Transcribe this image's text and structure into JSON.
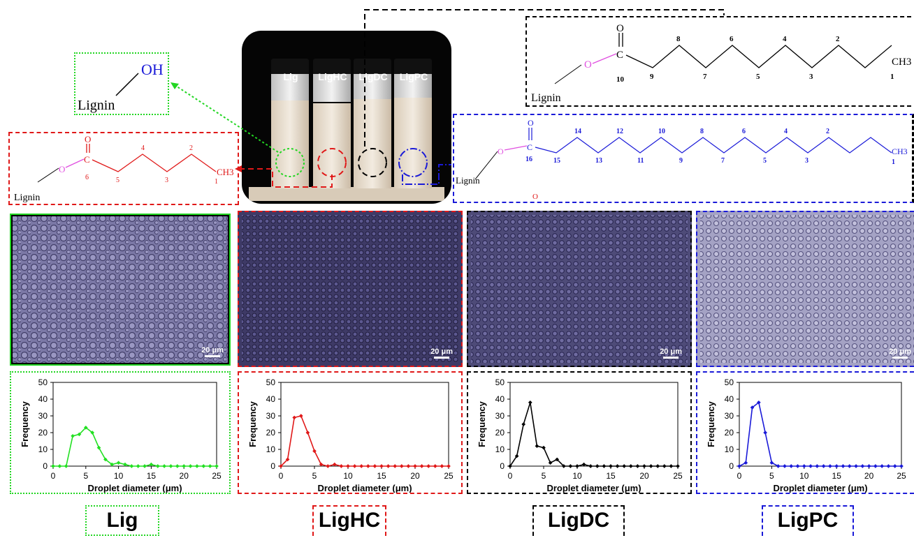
{
  "structures": {
    "lignin_oh": {
      "oh": "OH",
      "lignin": "Lignin"
    },
    "hc": {
      "lignin": "Lignin",
      "o_carbonyl": "O",
      "o_ester": "O",
      "c": "C",
      "ch3": "CH3",
      "numbers": [
        "6",
        "5",
        "4",
        "3",
        "2",
        "1"
      ]
    },
    "dc": {
      "lignin": "Lignin",
      "o_carbonyl": "O",
      "o_ester": "O",
      "c": "C",
      "ch3": "CH3",
      "numbers": [
        "10",
        "9",
        "8",
        "7",
        "6",
        "5",
        "4",
        "3",
        "2",
        "1"
      ]
    },
    "pc": {
      "lignin": "Lignin",
      "o_carbonyl": "O",
      "o_ester": "O",
      "c": "C",
      "ch3": "CH3",
      "numbers": [
        "16",
        "15",
        "14",
        "13",
        "12",
        "11",
        "10",
        "9",
        "8",
        "7",
        "6",
        "5",
        "4",
        "3",
        "2",
        "1"
      ],
      "stray_o": "O"
    }
  },
  "vials": [
    "Lig",
    "LigHC",
    "LigDC",
    "LigPC"
  ],
  "scale_bar": "20 μm",
  "panel_labels": [
    "Lig",
    "LigHC",
    "LigDC",
    "LigPC"
  ],
  "colors": {
    "lig": "#22d622",
    "hc": "#e01818",
    "dc": "#000000",
    "pc": "#1a1ad8"
  },
  "chart_data": [
    {
      "type": "line",
      "series_color": "#22e022",
      "xlabel": "Droplet diameter (μm)",
      "ylabel": "Frequency",
      "xlim": [
        0,
        25
      ],
      "ylim": [
        0,
        50
      ],
      "x_ticks": [
        "0",
        "5",
        "10",
        "15",
        "20",
        "25"
      ],
      "y_ticks": [
        "0",
        "10",
        "20",
        "30",
        "40",
        "50"
      ],
      "x": [
        0,
        1,
        2,
        3,
        4,
        5,
        6,
        7,
        8,
        9,
        10,
        11,
        12,
        13,
        14,
        15,
        16,
        17,
        18,
        19,
        20,
        21,
        22,
        23,
        24,
        25
      ],
      "y": [
        0,
        0,
        0,
        18,
        19,
        23,
        20,
        11,
        4,
        1,
        2,
        1,
        0,
        0,
        0,
        1,
        0,
        0,
        0,
        0,
        0,
        0,
        0,
        0,
        0,
        0
      ]
    },
    {
      "type": "line",
      "series_color": "#e01818",
      "xlabel": "Droplet diameter (μm)",
      "ylabel": "Frequency",
      "xlim": [
        0,
        25
      ],
      "ylim": [
        0,
        50
      ],
      "x_ticks": [
        "0",
        "5",
        "10",
        "15",
        "20",
        "25"
      ],
      "y_ticks": [
        "0",
        "10",
        "20",
        "30",
        "40",
        "50"
      ],
      "x": [
        0,
        1,
        2,
        3,
        4,
        5,
        6,
        7,
        8,
        9,
        10,
        11,
        12,
        13,
        14,
        15,
        16,
        17,
        18,
        19,
        20,
        21,
        22,
        23,
        24,
        25
      ],
      "y": [
        0,
        4,
        29,
        30,
        20,
        9,
        1,
        0,
        1,
        0,
        0,
        0,
        0,
        0,
        0,
        0,
        0,
        0,
        0,
        0,
        0,
        0,
        0,
        0,
        0,
        0
      ]
    },
    {
      "type": "line",
      "series_color": "#000000",
      "xlabel": "Droplet diameter (μm)",
      "ylabel": "Frequency",
      "xlim": [
        0,
        25
      ],
      "ylim": [
        0,
        50
      ],
      "x_ticks": [
        "0",
        "5",
        "10",
        "15",
        "20",
        "25"
      ],
      "y_ticks": [
        "0",
        "10",
        "20",
        "30",
        "40",
        "50"
      ],
      "x": [
        0,
        1,
        2,
        3,
        4,
        5,
        6,
        7,
        8,
        9,
        10,
        11,
        12,
        13,
        14,
        15,
        16,
        17,
        18,
        19,
        20,
        21,
        22,
        23,
        24,
        25
      ],
      "y": [
        0,
        6,
        25,
        38,
        12,
        11,
        2,
        4,
        0,
        0,
        0,
        1,
        0,
        0,
        0,
        0,
        0,
        0,
        0,
        0,
        0,
        0,
        0,
        0,
        0,
        0
      ]
    },
    {
      "type": "line",
      "series_color": "#1a1ad8",
      "xlabel": "Droplet diameter (μm)",
      "ylabel": "Frequency",
      "xlim": [
        0,
        25
      ],
      "ylim": [
        0,
        50
      ],
      "x_ticks": [
        "0",
        "5",
        "10",
        "15",
        "20",
        "25"
      ],
      "y_ticks": [
        "0",
        "10",
        "20",
        "30",
        "40",
        "50"
      ],
      "x": [
        0,
        1,
        2,
        3,
        4,
        5,
        6,
        7,
        8,
        9,
        10,
        11,
        12,
        13,
        14,
        15,
        16,
        17,
        18,
        19,
        20,
        21,
        22,
        23,
        24,
        25
      ],
      "y": [
        0,
        2,
        35,
        38,
        20,
        2,
        0,
        0,
        0,
        0,
        0,
        0,
        0,
        0,
        0,
        0,
        0,
        0,
        0,
        0,
        0,
        0,
        0,
        0,
        0,
        0
      ]
    }
  ]
}
